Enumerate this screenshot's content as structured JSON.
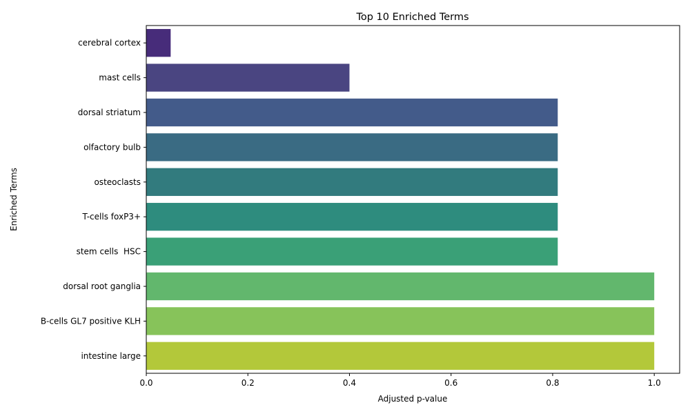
{
  "chart_data": {
    "type": "bar",
    "orientation": "horizontal",
    "title": "Top 10 Enriched Terms",
    "xlabel": "Adjusted p-value",
    "ylabel": "Enriched Terms",
    "xlim": [
      0,
      1.05
    ],
    "xticks": [
      "0.0",
      "0.2",
      "0.4",
      "0.6",
      "0.8",
      "1.0"
    ],
    "grid": false,
    "legend": "none",
    "categories": [
      "cerebral cortex",
      "mast cells",
      "dorsal striatum",
      "olfactory bulb",
      "osteoclasts",
      "T-cells foxP3+",
      "stem cells  HSC",
      "dorsal root ganglia",
      "B-cells GL7 positive KLH",
      "intestine large"
    ],
    "values": [
      0.048,
      0.4,
      0.81,
      0.81,
      0.81,
      0.81,
      0.81,
      1.0,
      1.0,
      1.0
    ],
    "colors": [
      "#472c7a",
      "#4a4581",
      "#435b8a",
      "#3a6b83",
      "#327b7e",
      "#2e8c7e",
      "#3aa077",
      "#62b76d",
      "#87c35a",
      "#b3c83a"
    ]
  }
}
